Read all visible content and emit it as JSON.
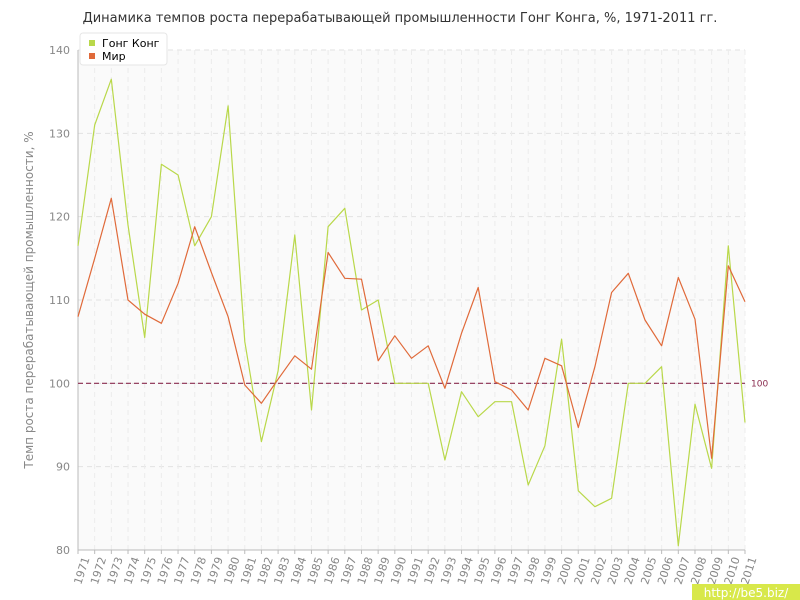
{
  "chart_data": {
    "type": "line",
    "title": "Динамика темпов роста перерабатывающей промышленности Гонг Конга, %, 1971-2011 гг.",
    "ylabel": "Темп роста перерабатывающей промышленности, %",
    "xlabel": "",
    "ylim": [
      80,
      140
    ],
    "yticks": [
      80,
      90,
      100,
      110,
      120,
      130,
      140
    ],
    "grid": true,
    "legend_position": "top-left",
    "categories": [
      "1971",
      "1972",
      "1973",
      "1974",
      "1975",
      "1976",
      "1977",
      "1978",
      "1979",
      "1980",
      "1981",
      "1982",
      "1983",
      "1984",
      "1985",
      "1986",
      "1987",
      "1988",
      "1989",
      "1990",
      "1991",
      "1992",
      "1993",
      "1994",
      "1995",
      "1996",
      "1997",
      "1998",
      "1999",
      "2000",
      "2001",
      "2002",
      "2003",
      "2004",
      "2005",
      "2006",
      "2007",
      "2008",
      "2009",
      "2010",
      "2011"
    ],
    "series": [
      {
        "name": "Гонг Конг",
        "color": "#b9d84a",
        "values": [
          116.5,
          131,
          136.5,
          119,
          105.5,
          126.3,
          125,
          116.5,
          120,
          133.3,
          105,
          93,
          101.5,
          117.8,
          96.8,
          118.8,
          121,
          108.8,
          110,
          100,
          100,
          100,
          90.8,
          99,
          96,
          97.8,
          97.8,
          87.8,
          92.5,
          105.3,
          87.1,
          85.2,
          86.2,
          100,
          100,
          102,
          80.5,
          97.5,
          89.8,
          116.5,
          95.3
        ]
      },
      {
        "name": "Мир",
        "color": "#e06a3a",
        "values": [
          108,
          115,
          122.2,
          110,
          108.3,
          107.2,
          112,
          118.8,
          113.3,
          108,
          99.8,
          97.6,
          100.5,
          103.3,
          101.7,
          115.7,
          112.6,
          112.5,
          102.7,
          105.7,
          103,
          104.5,
          99.4,
          106,
          111.5,
          100.2,
          99.2,
          96.8,
          103,
          102.1,
          94.7,
          102,
          110.9,
          113.2,
          107.6,
          104.5,
          112.7,
          107.7,
          91,
          114.1,
          109.8
        ]
      }
    ],
    "reference_line": {
      "value": 100,
      "label": "100",
      "color": "#8b2d50"
    }
  },
  "watermark": "http://be5.biz/"
}
